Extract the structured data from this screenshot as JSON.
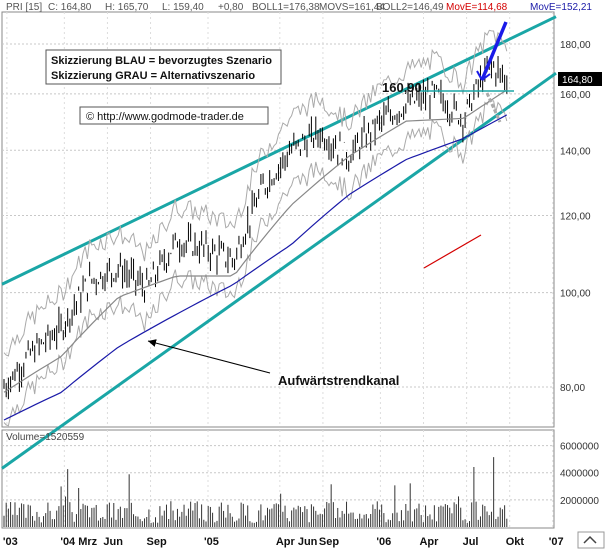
{
  "header": {
    "symbol": "PRI [15]",
    "close": "C: 164,80",
    "high": "H: 165,70",
    "low": "L: 159,40",
    "change": "+0,80",
    "boll1": "BOLL1=176,38",
    "movs": "MOVS=161,44",
    "boll2": "BOLL2=146,49",
    "move_red": "MovE=114,68",
    "move_blue": "MovE=152,21",
    "move_red_color": "#d40000",
    "move_blue_color": "#1a1aa8"
  },
  "legend_box": {
    "line1": "Skizzierung BLAU = bevorzugtes Szenario",
    "line2": "Skizzierung GRAU = Alternativszenario"
  },
  "source_box": {
    "text": "© http://www.godmode-trader.de"
  },
  "annotations": {
    "level_label": "160,90",
    "channel_label": "Aufwärtstrendkanal"
  },
  "price_badge": "164,80",
  "chart_data": [
    {
      "type": "line",
      "title": "",
      "scale": "log",
      "x_range": [
        "2003-11",
        "2007-02"
      ],
      "y_ticks": [
        80,
        100,
        120,
        140,
        160,
        180
      ],
      "y_tick_labels": [
        "80,00",
        "100,00",
        "120,00",
        "140,00",
        "160,00",
        "180,00"
      ],
      "x_tick_labels": [
        "'03",
        "'04 Mrz",
        "Jun",
        "Sep",
        "'05",
        "Apr Jun",
        "Sep",
        "'06",
        "Apr",
        "Jul",
        "Okt",
        "'07"
      ],
      "grid": true,
      "series": [
        {
          "name": "PRI [15]",
          "x": [
            "2003-11",
            "2004-01",
            "2004-03",
            "2004-05",
            "2004-07",
            "2004-09",
            "2004-11",
            "2005-01",
            "2005-03",
            "2005-05",
            "2005-07",
            "2005-09",
            "2005-11",
            "2006-01",
            "2006-03",
            "2006-05",
            "2006-07",
            "2006-08",
            "2006-09",
            "2006-10"
          ],
          "values": [
            80,
            87,
            92,
            103,
            106,
            101,
            113,
            111,
            108,
            128,
            140,
            146,
            138,
            149,
            156,
            160,
            151,
            163,
            171,
            164.8
          ]
        },
        {
          "name": "MOVS",
          "x": [
            "2003-11",
            "2004-03",
            "2004-07",
            "2004-11",
            "2005-03",
            "2005-07",
            "2005-11",
            "2006-03",
            "2006-07",
            "2006-10"
          ],
          "values": [
            79,
            86,
            99,
            104,
            104,
            123,
            138,
            150,
            151,
            161.44
          ]
        },
        {
          "name": "MovE",
          "x": [
            "2003-11",
            "2004-03",
            "2004-07",
            "2004-11",
            "2005-03",
            "2005-07",
            "2005-11",
            "2006-03",
            "2006-07",
            "2006-10"
          ],
          "values": [
            74,
            79,
            88,
            95,
            102,
            112,
            126,
            137,
            144,
            152.21
          ]
        }
      ],
      "channel": {
        "upper_start": 102,
        "upper_end": 192,
        "lower_start": 66,
        "lower_end": 168
      },
      "horizontal_level": 160.9
    },
    {
      "type": "bar",
      "title": "Volume=1520559",
      "y_ticks": [
        2000000,
        4000000,
        6000000
      ],
      "y_tick_labels": [
        "2000000",
        "4000000",
        "6000000"
      ],
      "last_value": 1520559
    }
  ]
}
